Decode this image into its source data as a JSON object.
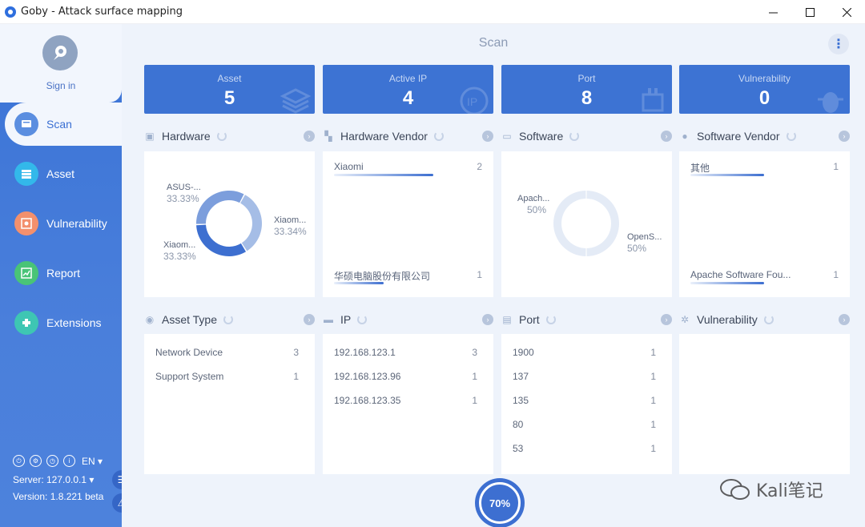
{
  "window": {
    "title": "Goby - Attack surface mapping",
    "minimize": "—",
    "maximize": "☐",
    "close": "✕"
  },
  "sidebar": {
    "signin": "Sign in",
    "items": [
      {
        "label": "Scan",
        "icon": "scan-icon",
        "color": "#5b8ee0"
      },
      {
        "label": "Asset",
        "icon": "asset-icon",
        "color": "#33b8ea"
      },
      {
        "label": "Vulnerability",
        "icon": "vulnerability-icon",
        "color": "#f3906d"
      },
      {
        "label": "Report",
        "icon": "report-icon",
        "color": "#49c477"
      },
      {
        "label": "Extensions",
        "icon": "extensions-icon",
        "color": "#3ec6b3"
      }
    ],
    "footer": {
      "lang": "EN",
      "server": "Server: 127.0.0.1",
      "version": "Version: 1.8.221 beta"
    }
  },
  "main": {
    "title": "Scan",
    "stats": [
      {
        "label": "Asset",
        "value": "5"
      },
      {
        "label": "Active IP",
        "value": "4"
      },
      {
        "label": "Port",
        "value": "8"
      },
      {
        "label": "Vulnerability",
        "value": "0"
      }
    ],
    "hardware": {
      "title": "Hardware",
      "slices": [
        {
          "name": "ASUS-...",
          "pct": "33.33%",
          "value": 33.33,
          "color": "#a5bde6"
        },
        {
          "name": "Xiaom...",
          "pct": "33.34%",
          "value": 33.34,
          "color": "#3d6fd0"
        },
        {
          "name": "Xiaom...",
          "pct": "33.33%",
          "value": 33.33,
          "color": "#7c9edc"
        }
      ]
    },
    "hardware_vendor": {
      "title": "Hardware Vendor",
      "rows": [
        {
          "name": "Xiaomi",
          "count": "2",
          "fill": 1.0
        },
        {
          "name": "华硕电脑股份有限公司",
          "count": "1",
          "fill": 0.5
        }
      ]
    },
    "software": {
      "title": "Software",
      "slices": [
        {
          "name": "Apach...",
          "pct": "50%",
          "value": 50,
          "color": "#e4ebf6"
        },
        {
          "name": "OpenS...",
          "pct": "50%",
          "value": 50,
          "color": "#e4ebf6"
        }
      ]
    },
    "software_vendor": {
      "title": "Software Vendor",
      "rows": [
        {
          "name": "其他",
          "count": "1",
          "fill": 1.0
        },
        {
          "name": "Apache Software Fou...",
          "count": "1",
          "fill": 1.0
        }
      ]
    },
    "asset_type": {
      "title": "Asset Type",
      "rows": [
        {
          "name": "Network Device",
          "count": "3"
        },
        {
          "name": "Support System",
          "count": "1"
        }
      ]
    },
    "ip": {
      "title": "IP",
      "rows": [
        {
          "name": "192.168.123.1",
          "count": "3"
        },
        {
          "name": "192.168.123.96",
          "count": "1"
        },
        {
          "name": "192.168.123.35",
          "count": "1"
        }
      ]
    },
    "port": {
      "title": "Port",
      "rows": [
        {
          "name": "1900",
          "count": "1"
        },
        {
          "name": "137",
          "count": "1"
        },
        {
          "name": "135",
          "count": "1"
        },
        {
          "name": "80",
          "count": "1"
        },
        {
          "name": "53",
          "count": "1"
        }
      ]
    },
    "vulnerability": {
      "title": "Vulnerability"
    },
    "progress": "70%",
    "watermark": "Kali笔记"
  }
}
